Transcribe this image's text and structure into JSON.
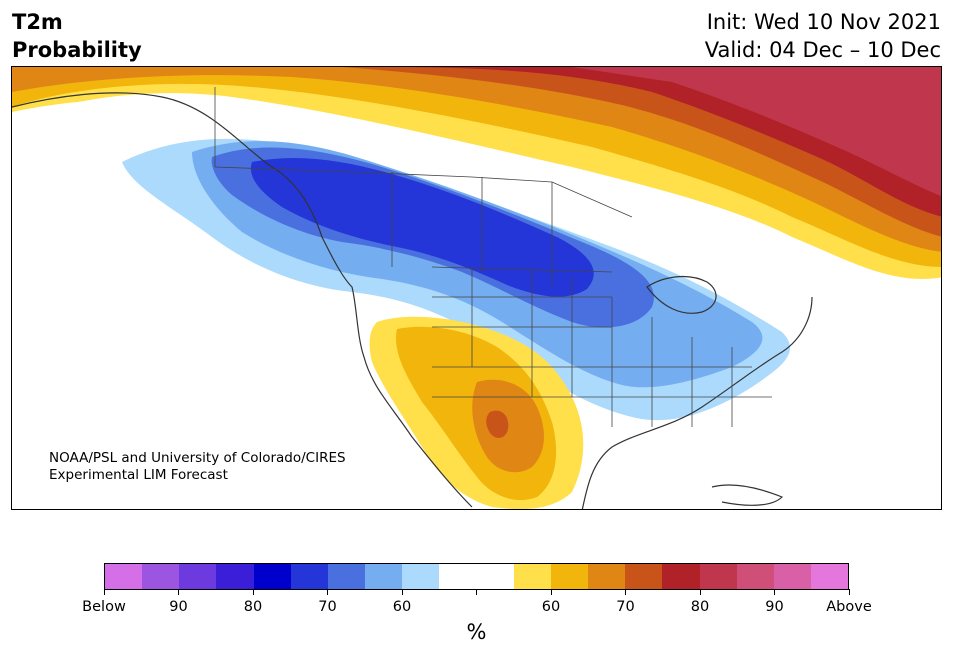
{
  "header": {
    "title_line1": "T2m",
    "title_line2": "Probability",
    "init_label": "Init: Wed 10 Nov 2021",
    "valid_label": "Valid: 04 Dec – 10 Dec"
  },
  "map": {
    "credit_line1": "NOAA/PSL and University of Colorado/CIRES",
    "credit_line2": "Experimental LIM Forecast",
    "region": "North America",
    "cold_anomaly": "Alaska, western Canada, northern Plains to Great Lakes and Eastern US",
    "warm_anomaly": "Northern Canada, Quebec/Labrador, southwestern US and northern Mexico"
  },
  "colorbar": {
    "unit_label": "%",
    "colors": [
      "#d46fe8",
      "#9b55e0",
      "#6c3adf",
      "#3a1ed8",
      "#0000cc",
      "#2436d8",
      "#4a70e0",
      "#74aef0",
      "#acdafc",
      "#ffffff",
      "#ffffff",
      "#ffe04a",
      "#f2b50c",
      "#df8615",
      "#c8541a",
      "#b02228",
      "#c0374d",
      "#d04f78",
      "#d95fa6",
      "#e577dc"
    ],
    "tick_labels": [
      "Below",
      "90",
      "80",
      "70",
      "60",
      "",
      "60",
      "70",
      "80",
      "90",
      "Above"
    ]
  }
}
